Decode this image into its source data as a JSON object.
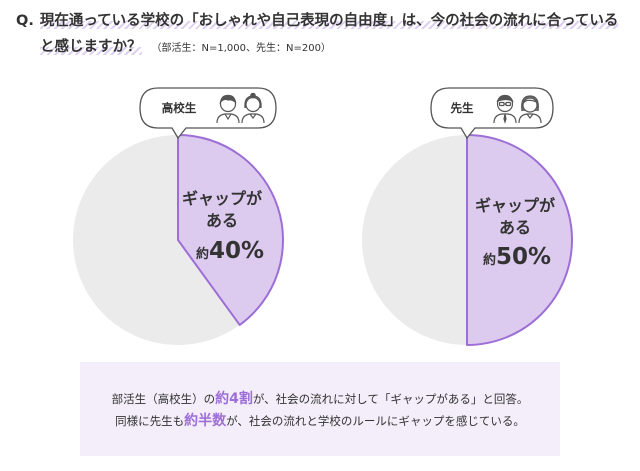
{
  "question": {
    "prefix": "Q.",
    "line1": "現在通っている学校の「おしゃれや自己表現の自由度」は、今の社会の流れに合っている",
    "line2": "と感じますか？",
    "note": "（部活生：N=1,000、先生：N=200）"
  },
  "chart_data": [
    {
      "type": "pie",
      "group_label": "高校生",
      "slices": [
        {
          "name": "ギャップがある",
          "value": 40
        },
        {
          "name": "",
          "value": 60
        }
      ],
      "slice_label": {
        "line1": "ギャップが",
        "line2": "ある",
        "prefix": "約",
        "value": "40%"
      },
      "colors": {
        "highlight": "#dccbef",
        "highlight_stroke": "#9d6fd6",
        "rest": "#ebebeb"
      }
    },
    {
      "type": "pie",
      "group_label": "先生",
      "slices": [
        {
          "name": "ギャップがある",
          "value": 50
        },
        {
          "name": "",
          "value": 50
        }
      ],
      "slice_label": {
        "line1": "ギャップが",
        "line2": "ある",
        "prefix": "約",
        "value": "50%"
      },
      "colors": {
        "highlight": "#dccbef",
        "highlight_stroke": "#9d6fd6",
        "rest": "#ebebeb"
      }
    }
  ],
  "icons": [
    "student-boy-icon",
    "student-girl-icon",
    "teacher-man-icon",
    "teacher-woman-icon"
  ],
  "summary": {
    "line1_a": "部活生（高校生）の",
    "line1_hl": "約4割",
    "line1_b": "が、社会の流れに対して「ギャップがある」と回答。",
    "line2_a": "同様に先生も",
    "line2_hl": "約半数",
    "line2_b": "が、社会の流れと学校のルールにギャップを感じている。"
  }
}
